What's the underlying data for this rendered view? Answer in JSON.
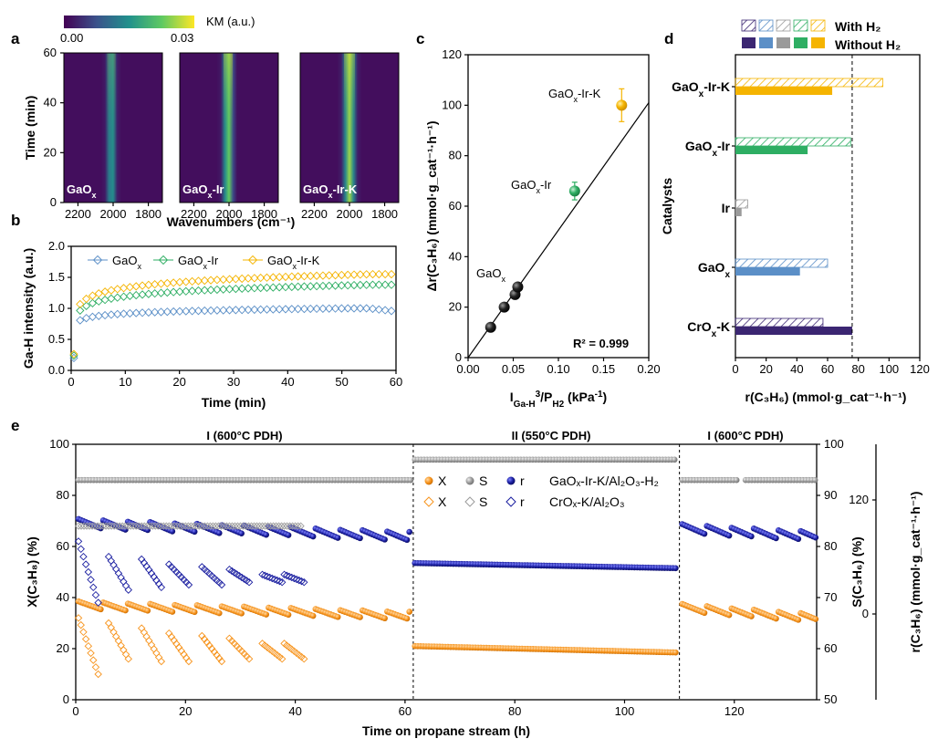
{
  "colors": {
    "GaOx": "#5b8fc7",
    "GaOx-Ir": "#2eae63",
    "GaOx-Ir-K": "#f5b400",
    "Ir": "#9a9a9a",
    "CrOx-K": "#3b2672",
    "orange": "#f7941d",
    "gray": "#9b9b9b",
    "navy": "#1a1ea0"
  },
  "panels": {
    "a": "a",
    "b": "b",
    "c": "c",
    "d": "d",
    "e": "e"
  },
  "panel_a": {
    "colorbar_label": "KM (a.u.)",
    "colorbar_min": "0.00",
    "colorbar_max": "0.03",
    "ylabel": "Time (min)",
    "xlabel": "Wavenumbers  (cm⁻¹)",
    "yticks": [
      "0",
      "20",
      "40",
      "60"
    ],
    "xticks": [
      "2200",
      "2000",
      "1800"
    ],
    "maps": [
      {
        "label_main": "GaO",
        "label_sub": "x",
        "label_rest": "",
        "peak": 2010,
        "width": 22,
        "intensity_start": 0.45,
        "intensity_end": 0.62
      },
      {
        "label_main": "GaO",
        "label_sub": "x",
        "label_rest": "-Ir",
        "peak": 2005,
        "width": 24,
        "intensity_start": 0.55,
        "intensity_end": 0.95
      },
      {
        "label_main": "GaO",
        "label_sub": "x",
        "label_rest": "-Ir-K",
        "peak": 2000,
        "width": 28,
        "intensity_start": 0.62,
        "intensity_end": 1.0
      }
    ]
  },
  "chart_data": [
    {
      "panel": "b",
      "type": "scatter",
      "xlabel": "Time (min)",
      "ylabel": "Ga-H intensity (a.u.)",
      "xlim": [
        0,
        60
      ],
      "ylim": [
        0,
        2.0
      ],
      "xticks": [
        "0",
        "10",
        "20",
        "30",
        "40",
        "50",
        "60"
      ],
      "yticks": [
        "0.0",
        "0.5",
        "1.0",
        "1.5",
        "2.0"
      ],
      "series": [
        {
          "name_main": "GaO",
          "name_sub": "x",
          "name_rest": "",
          "key": "GaOx",
          "start": 0.8,
          "end": 1.0,
          "peak_t": 55
        },
        {
          "name_main": "GaO",
          "name_sub": "x",
          "name_rest": "-Ir",
          "key": "GaOx-Ir",
          "start": 0.95,
          "end": 1.38,
          "peak_t": 60
        },
        {
          "name_main": "GaO",
          "name_sub": "x",
          "name_rest": "-Ir-K",
          "key": "GaOx-Ir-K",
          "start": 1.05,
          "end": 1.55,
          "peak_t": 60
        }
      ]
    },
    {
      "panel": "c",
      "type": "scatter",
      "xlabel_main": "I",
      "xlabel_sub": "Ga-H",
      "xlabel_sup": "3",
      "xlabel_mid": "/P",
      "xlabel_sub2": "H2",
      "xlabel_unit": " (kPa",
      "xlabel_unit_sup": "-1",
      "xlabel_end": ")",
      "ylabel": "Δr(C₃H₆) (mmol·g_cat⁻¹·h⁻¹)",
      "xlim": [
        0,
        0.2
      ],
      "ylim": [
        0,
        120
      ],
      "xticks": [
        "0.00",
        "0.05",
        "0.10",
        "0.15",
        "0.20"
      ],
      "yticks": [
        "0",
        "20",
        "40",
        "60",
        "80",
        "100",
        "120"
      ],
      "points": [
        {
          "x": 0.025,
          "y": 12,
          "key": "black"
        },
        {
          "x": 0.04,
          "y": 20,
          "key": "black"
        },
        {
          "x": 0.052,
          "y": 25,
          "key": "black"
        },
        {
          "x": 0.055,
          "y": 28,
          "key": "black"
        },
        {
          "x": 0.118,
          "y": 66,
          "err": 3.5,
          "key": "GaOx-Ir"
        },
        {
          "x": 0.17,
          "y": 100,
          "err": 6.5,
          "key": "GaOx-Ir-K"
        }
      ],
      "fit_line": {
        "x0": 0.0,
        "y0": 0.0,
        "x1": 0.2,
        "y1": 101
      },
      "r2": "R² = 0.999",
      "labels": [
        {
          "main": "GaO",
          "sub": "x",
          "rest": "-Ir-K"
        },
        {
          "main": "GaO",
          "sub": "x",
          "rest": "-Ir"
        },
        {
          "main": "GaO",
          "sub": "x",
          "rest": ""
        }
      ]
    },
    {
      "panel": "d",
      "type": "bar",
      "xlabel": "r(C₃H₆) (mmol·g_cat⁻¹·h⁻¹)",
      "ylabel": "Catalysts",
      "xlim": [
        0,
        120
      ],
      "xticks": [
        "0",
        "20",
        "40",
        "60",
        "80",
        "100",
        "120"
      ],
      "reference_line": 76,
      "legend_with": "With H₂",
      "legend_without": "Without H₂",
      "categories": [
        {
          "main": "GaO",
          "sub": "x",
          "rest": "-Ir-K",
          "key": "GaOx-Ir-K",
          "with_h2": 96,
          "without_h2": 63
        },
        {
          "main": "GaO",
          "sub": "x",
          "rest": "-Ir",
          "key": "GaOx-Ir",
          "with_h2": 75,
          "without_h2": 47
        },
        {
          "main": "Ir",
          "sub": "",
          "rest": "",
          "key": "Ir",
          "with_h2": 8,
          "without_h2": 4
        },
        {
          "main": "GaO",
          "sub": "x",
          "rest": "",
          "key": "GaOx",
          "with_h2": 60,
          "without_h2": 42
        },
        {
          "main": "CrO",
          "sub": "x",
          "rest": "-K",
          "key": "CrOx-K",
          "with_h2": 57,
          "without_h2": 76
        }
      ]
    },
    {
      "panel": "e",
      "type": "scatter",
      "xlabel": "Time on propane stream (h)",
      "ylabel_left": "X(C₃H₈) (%)",
      "ylabel_mid": "S(C₃H₆) (%)",
      "ylabel_right": "r(C₃H₆) (mmol·g_cat⁻¹·h⁻¹)",
      "xlim": [
        0,
        135
      ],
      "ylim_left": [
        0,
        100
      ],
      "ylim_right": [
        50,
        100
      ],
      "xticks": [
        "0",
        "20",
        "40",
        "60",
        "80",
        "100",
        "120"
      ],
      "yticks_left": [
        "0",
        "20",
        "40",
        "60",
        "80",
        "100"
      ],
      "yticks_mid": [
        "50",
        "60",
        "70",
        "80",
        "90",
        "100"
      ],
      "yticks_right": [
        "0",
        "120"
      ],
      "sections": [
        "I (600°C PDH)",
        "II (550°C PDH)",
        "I (600°C PDH)"
      ],
      "section_bounds": [
        61.5,
        110
      ],
      "legend_row1": {
        "x": "X",
        "s": "S",
        "r": "r",
        "label": "GaOₓ-Ir-K/Al₂O₃-H₂"
      },
      "legend_row2": {
        "x": "X",
        "s": "S",
        "r": "r",
        "label": "CrOₓ-K/Al₂O₃"
      },
      "ga_series": {
        "X": {
          "seg1": [
            37,
            33
          ],
          "seg2": [
            21,
            18.5
          ],
          "seg3": [
            36,
            32
          ]
        },
        "S_percent": {
          "seg1": 93,
          "seg2": 97,
          "seg3": 93
        },
        "r": {
          "seg1": [
            69,
            64
          ],
          "seg2": [
            53.5,
            51.5
          ],
          "seg3": [
            67,
            64
          ]
        }
      },
      "cr_series": {
        "X_cycles": [
          [
            0.5,
            32,
            10
          ],
          [
            6,
            30,
            16
          ],
          [
            12,
            28,
            15
          ],
          [
            17,
            26,
            15
          ],
          [
            23,
            25,
            15
          ],
          [
            28,
            24,
            16
          ],
          [
            34,
            22,
            16
          ],
          [
            38,
            22,
            16
          ]
        ],
        "S_percent": 84,
        "r_cycles": [
          [
            0.5,
            62,
            38
          ],
          [
            6,
            56,
            43
          ],
          [
            12,
            55,
            44
          ],
          [
            17,
            53,
            45
          ],
          [
            23,
            52,
            45
          ],
          [
            28,
            51,
            46
          ],
          [
            34,
            49,
            46
          ],
          [
            38,
            49,
            46
          ]
        ]
      }
    }
  ]
}
